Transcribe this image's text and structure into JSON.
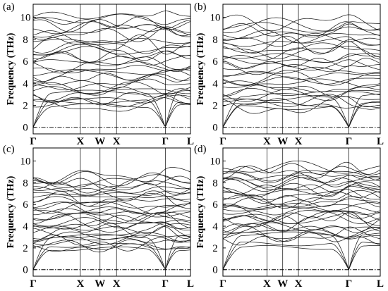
{
  "figure": {
    "y_axis_label": "Frequency (THz)",
    "y_ticks": [
      "0",
      "2",
      "4",
      "6",
      "8",
      "10"
    ],
    "k_labels": [
      "Γ",
      "X",
      "W",
      "X",
      "Γ",
      "L"
    ]
  },
  "chart_data": [
    {
      "type": "line",
      "panel_label": "(a)",
      "ylabel": "Frequency (THz)",
      "ylim": [
        -0.6,
        11.2
      ],
      "x_ticks": [
        "Γ",
        "X",
        "W",
        "X",
        "Γ",
        "L"
      ],
      "k_positions": [
        0,
        0.3,
        0.425,
        0.53,
        0.84,
        1.0
      ],
      "acoustic_max": 3.2,
      "band_count": 30,
      "optical_range": [
        1.9,
        10.4
      ],
      "series_note": "phonon dispersion branches"
    },
    {
      "type": "line",
      "panel_label": "(b)",
      "ylabel": "Frequency (THz)",
      "ylim": [
        -0.6,
        11.2
      ],
      "x_ticks": [
        "Γ",
        "X",
        "W",
        "X",
        "Γ",
        "L"
      ],
      "k_positions": [
        0,
        0.28,
        0.38,
        0.48,
        0.8,
        1.0
      ],
      "acoustic_max": 2.9,
      "band_count": 30,
      "optical_range": [
        1.8,
        9.8
      ],
      "series_note": "phonon dispersion branches"
    },
    {
      "type": "line",
      "panel_label": "(c)",
      "ylabel": "Frequency (THz)",
      "ylim": [
        -0.6,
        11.2
      ],
      "x_ticks": [
        "Γ",
        "X",
        "W",
        "X",
        "Γ",
        "L"
      ],
      "k_positions": [
        0,
        0.3,
        0.425,
        0.53,
        0.84,
        1.0
      ],
      "acoustic_max": 3.1,
      "band_count": 32,
      "optical_range": [
        2.0,
        8.8
      ],
      "series_note": "phonon dispersion branches"
    },
    {
      "type": "line",
      "panel_label": "(d)",
      "ylabel": "Frequency (THz)",
      "ylim": [
        -0.6,
        11.2
      ],
      "x_ticks": [
        "Γ",
        "X",
        "W",
        "X",
        "Γ",
        "L"
      ],
      "k_positions": [
        0,
        0.28,
        0.38,
        0.48,
        0.8,
        1.0
      ],
      "acoustic_max": 3.3,
      "band_count": 32,
      "optical_range": [
        2.8,
        9.6
      ],
      "series_note": "phonon dispersion branches"
    }
  ]
}
